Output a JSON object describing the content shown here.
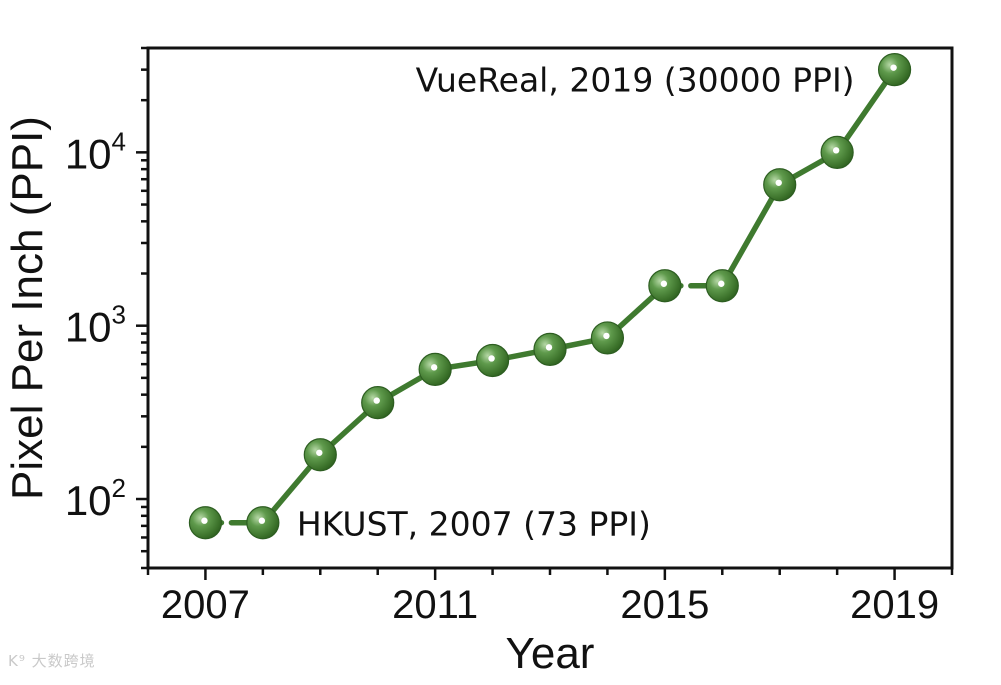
{
  "chart_data": {
    "type": "line",
    "title": "",
    "xlabel": "Year",
    "ylabel": "Pixel Per Inch (PPI)",
    "x": [
      2007,
      2008,
      2009,
      2010,
      2011,
      2012,
      2013,
      2014,
      2015,
      2016,
      2017,
      2018,
      2019
    ],
    "series": [
      {
        "values": [
          73,
          73,
          180,
          360,
          560,
          630,
          730,
          850,
          1700,
          1700,
          6500,
          10000,
          30000
        ],
        "color": "#3f7a2f"
      }
    ],
    "xlim": [
      2006,
      2020
    ],
    "ylim": [
      40,
      40000
    ],
    "yscale": "log",
    "xticks_major": [
      2007,
      2011,
      2015,
      2019
    ],
    "yticks_major": [
      {
        "base": "10",
        "exp": "2",
        "value": 100
      },
      {
        "base": "10",
        "exp": "3",
        "value": 1000
      },
      {
        "base": "10",
        "exp": "4",
        "value": 10000
      }
    ],
    "grid": false,
    "annotations": [
      {
        "text": "HKUST, 2007 (73 PPI)",
        "x": 2008,
        "y": 73
      },
      {
        "text": "VueReal, 2019 (30000 PPI)",
        "x": 2019,
        "y": 30000
      }
    ]
  },
  "watermark": "K⁹ 大数跨境"
}
